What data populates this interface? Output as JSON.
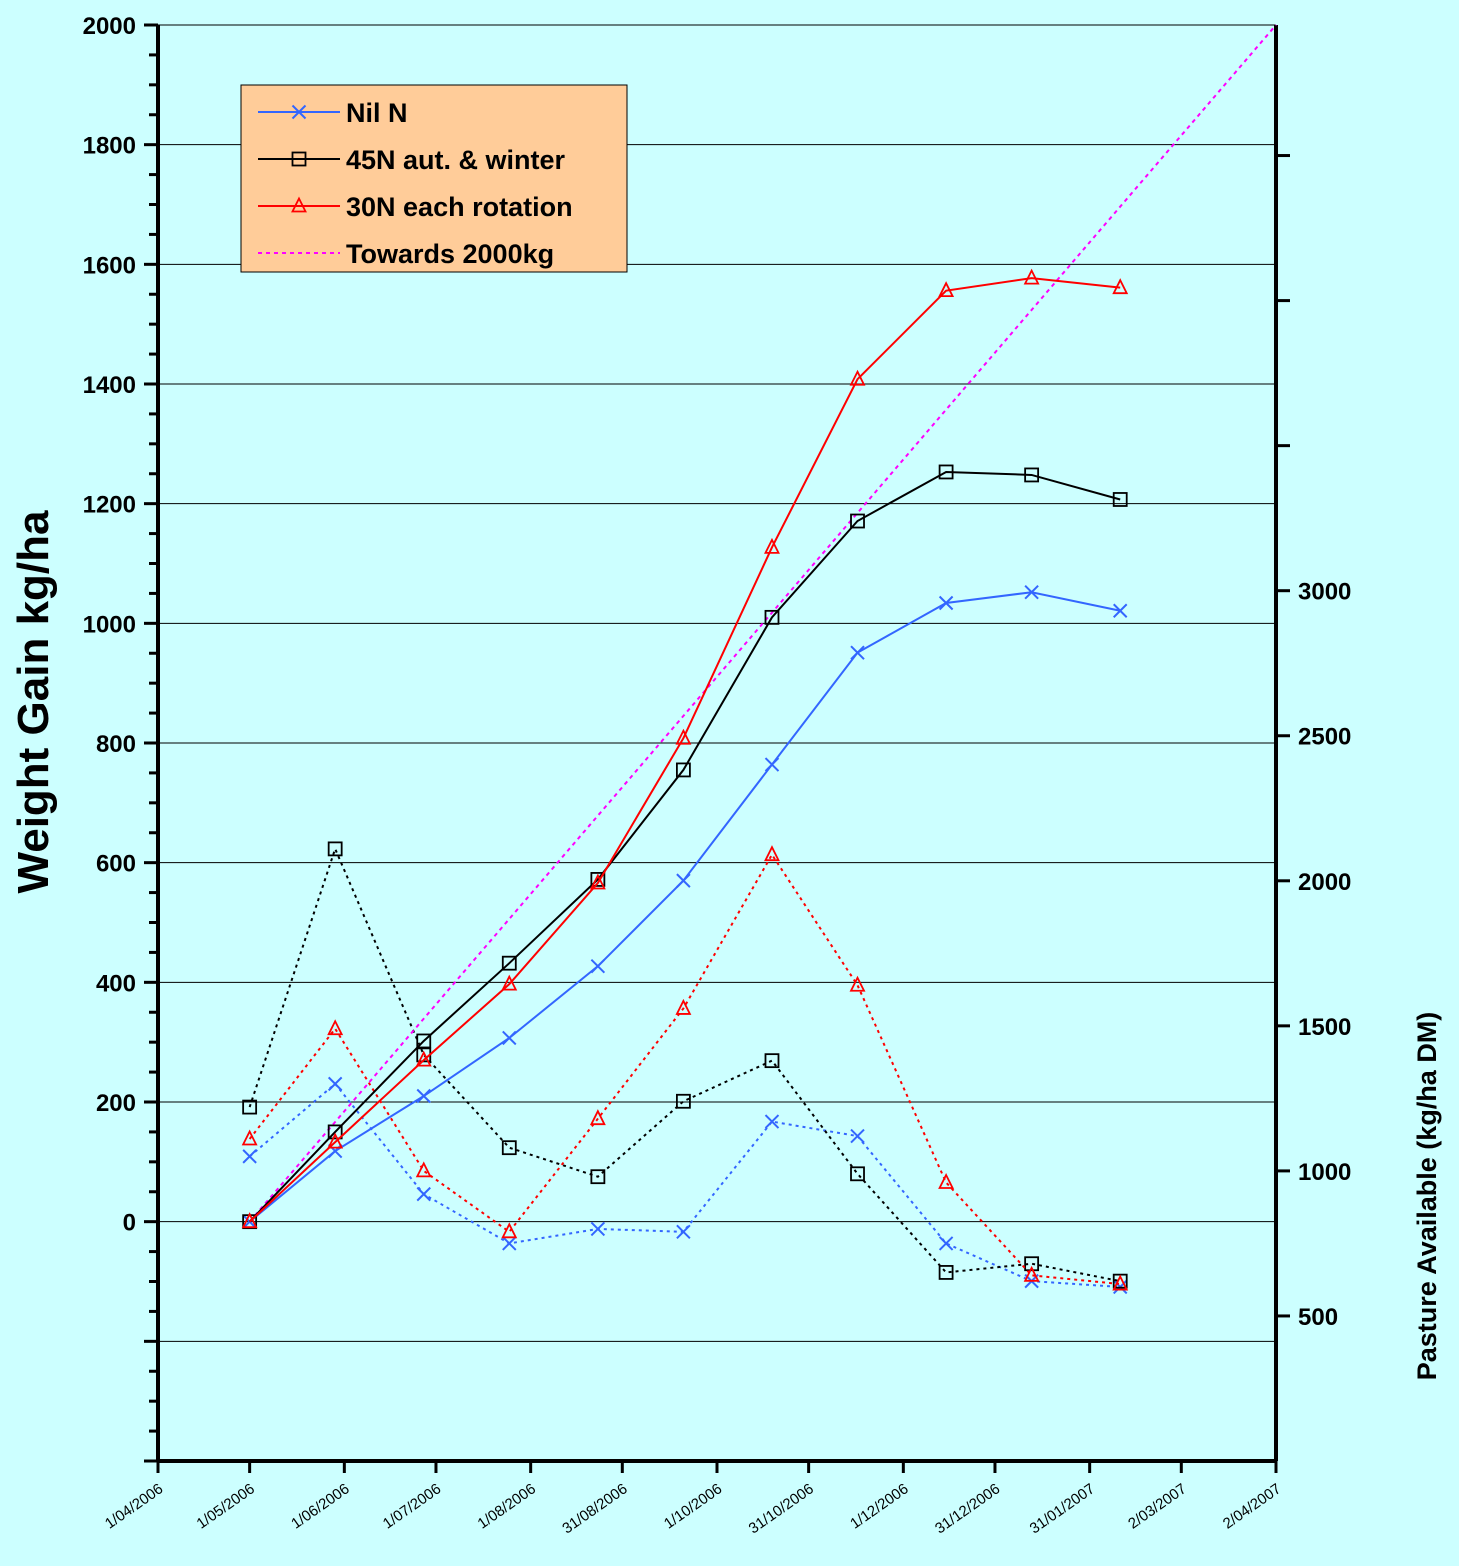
{
  "chart_data": {
    "type": "line",
    "ylabel": "Weight Gain kg/ha",
    "y2label": "Pasture Available (kg/ha DM)",
    "ylim": [
      -400,
      2000
    ],
    "y2lim": [
      0,
      4950
    ],
    "yticks": [
      "0",
      "200",
      "400",
      "600",
      "800",
      "1000",
      "1200",
      "1400",
      "1600",
      "1800",
      "2000"
    ],
    "y2ticks": [
      "500",
      "1000",
      "1500",
      "2000",
      "2500",
      "3000"
    ],
    "xlim": [
      "2006-04-01",
      "2007-04-02"
    ],
    "xtick_dates": [
      "2006-04-01",
      "2006-05-01",
      "2006-06-01",
      "2006-07-01",
      "2006-08-01",
      "2006-08-31",
      "2006-10-01",
      "2006-10-31",
      "2006-12-01",
      "2006-12-31",
      "2007-01-31",
      "2007-03-02",
      "2007-04-02"
    ],
    "xtick_labels": [
      "1/04/2006",
      "1/05/2006",
      "1/06/2006",
      "1/07/2006",
      "1/08/2006",
      "31/08/2006",
      "1/10/2006",
      "31/10/2006",
      "1/12/2006",
      "31/12/2006",
      "31/01/2007",
      "2/03/2007",
      "2/04/2007"
    ],
    "grid": "horizontal",
    "legend_position": "top-left",
    "series": [
      {
        "name": "Nil N",
        "color": "#3366ff",
        "marker": "x",
        "style": "solid",
        "axis": "left",
        "x": [
          "2006-05-01",
          "2006-05-29",
          "2006-06-27",
          "2006-07-25",
          "2006-08-23",
          "2006-09-20",
          "2006-10-19",
          "2006-11-16",
          "2006-12-15",
          "2007-01-12",
          "2007-02-10"
        ],
        "values": [
          0,
          118,
          210,
          307,
          427,
          570,
          764,
          951,
          1034,
          1052,
          1021
        ]
      },
      {
        "name": "45N aut. & winter",
        "color": "#000000",
        "marker": "square",
        "style": "solid",
        "axis": "left",
        "x": [
          "2006-05-01",
          "2006-05-29",
          "2006-06-27",
          "2006-07-25",
          "2006-08-23",
          "2006-09-20",
          "2006-10-19",
          "2006-11-16",
          "2006-12-15",
          "2007-01-12",
          "2007-02-10"
        ],
        "values": [
          0,
          150,
          302,
          432,
          572,
          755,
          1010,
          1171,
          1253,
          1248,
          1207
        ]
      },
      {
        "name": "30N each rotation",
        "color": "#ff0000",
        "marker": "triangle",
        "style": "solid",
        "axis": "left",
        "x": [
          "2006-05-01",
          "2006-05-29",
          "2006-06-27",
          "2006-07-25",
          "2006-08-23",
          "2006-09-20",
          "2006-10-19",
          "2006-11-16",
          "2006-12-15",
          "2007-01-12",
          "2007-02-10"
        ],
        "values": [
          0,
          133,
          270,
          397,
          566,
          808,
          1127,
          1408,
          1556,
          1577,
          1561
        ]
      },
      {
        "name": "Towards 2000kg",
        "color": "#ff00ff",
        "marker": "none",
        "style": "dotted",
        "axis": "left",
        "x": [
          "2006-05-01",
          "2007-04-02"
        ],
        "values": [
          0,
          2000
        ]
      },
      {
        "color": "#3366ff",
        "marker": "x",
        "style": "dotted",
        "axis": "right",
        "x": [
          "2006-05-01",
          "2006-05-29",
          "2006-06-27",
          "2006-07-25",
          "2006-08-23",
          "2006-09-20",
          "2006-10-19",
          "2006-11-16",
          "2006-12-15",
          "2007-01-12",
          "2007-02-10"
        ],
        "values": [
          1050,
          1300,
          920,
          750,
          800,
          790,
          1170,
          1120,
          750,
          620,
          600
        ]
      },
      {
        "color": "#000000",
        "marker": "square",
        "style": "dotted",
        "axis": "right",
        "x": [
          "2006-05-01",
          "2006-05-29",
          "2006-06-27",
          "2006-07-25",
          "2006-08-23",
          "2006-09-20",
          "2006-10-19",
          "2006-11-16",
          "2006-12-15",
          "2007-01-12",
          "2007-02-10"
        ],
        "values": [
          1220,
          2110,
          1400,
          1080,
          980,
          1240,
          1380,
          990,
          650,
          680,
          620
        ]
      },
      {
        "color": "#ff0000",
        "marker": "triangle",
        "style": "dotted",
        "axis": "right",
        "x": [
          "2006-05-01",
          "2006-05-29",
          "2006-06-27",
          "2006-07-25",
          "2006-08-23",
          "2006-09-20",
          "2006-10-19",
          "2006-11-16",
          "2006-12-15",
          "2007-01-12",
          "2007-02-10"
        ],
        "values": [
          1110,
          1490,
          1000,
          790,
          1180,
          1560,
          2090,
          1640,
          960,
          640,
          610
        ]
      }
    ]
  }
}
